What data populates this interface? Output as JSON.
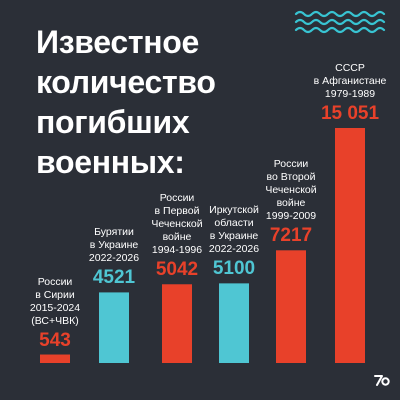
{
  "title_lines": [
    "Известное",
    "количество",
    "погибших",
    "военных:"
  ],
  "colors": {
    "background": "#2b2f37",
    "red": "#e8412a",
    "teal": "#4fc6d3",
    "title": "#ffffff",
    "wave": "#38c4d2"
  },
  "icons": {
    "waves": "wave-lines-icon",
    "logo": "brand-logo-icon"
  },
  "chart_data": {
    "type": "bar",
    "categories": [
      [
        "России",
        "в Сирии",
        "2015-2024",
        "(ВС+ЧВК)"
      ],
      [
        "Бурятии",
        "в Украине",
        "2022-2026"
      ],
      [
        "России",
        "в Первой",
        "Чеченской",
        "войне",
        "1994-1996"
      ],
      [
        "Иркутской",
        "области",
        "в Украине",
        "2022-2026"
      ],
      [
        "России",
        "во Второй",
        "Чеченской",
        "войне",
        "1999-2009"
      ],
      [
        "СССР",
        "в Афганистане",
        "1979-1989"
      ]
    ],
    "values": [
      543,
      4521,
      5042,
      5100,
      7217,
      15051
    ],
    "value_labels": [
      "543",
      "4521",
      "5042",
      "5100",
      "7217",
      "15 051"
    ],
    "bar_colors": [
      "red",
      "teal",
      "red",
      "teal",
      "red",
      "red"
    ],
    "ylim": [
      0,
      15051
    ],
    "grid": false,
    "legend": "none"
  }
}
